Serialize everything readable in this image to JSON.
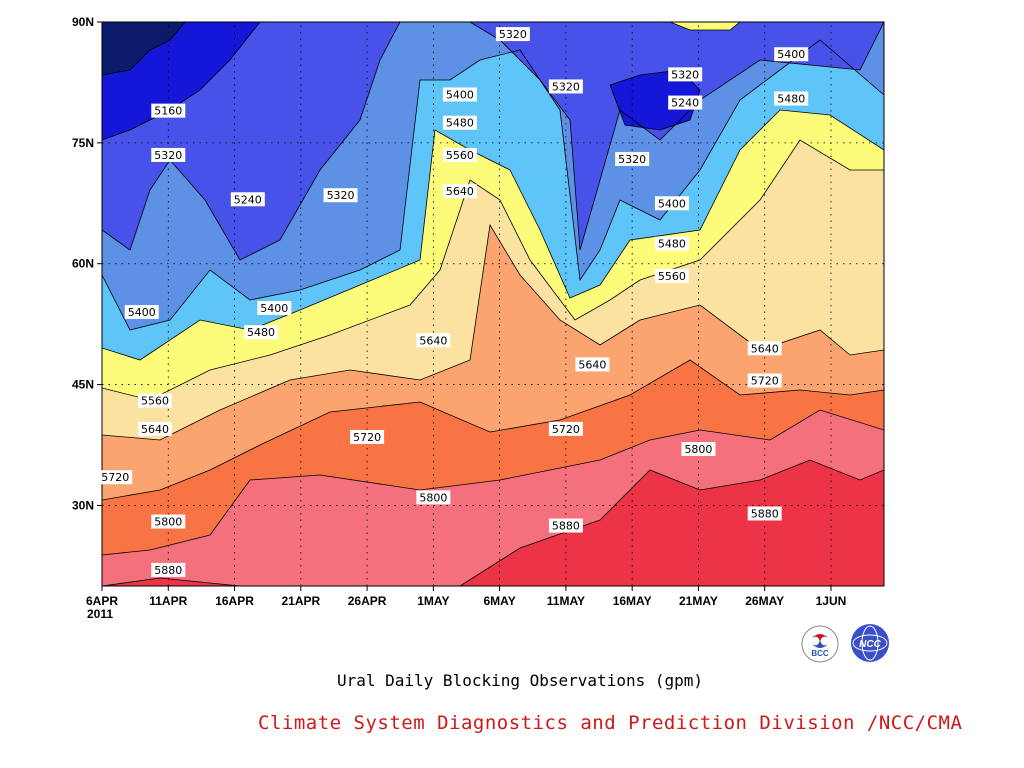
{
  "chart_data": {
    "type": "heatmap",
    "title": "Ural Daily Blocking Observations (gpm)",
    "xlabel": "",
    "ylabel": "",
    "x_tick_labels": [
      "6APR",
      "11APR",
      "16APR",
      "21APR",
      "26APR",
      "1MAY",
      "6MAY",
      "11MAY",
      "16MAY",
      "21MAY",
      "26MAY",
      "1JUN"
    ],
    "x_year_label": "2011",
    "y_tick_labels": [
      "30N",
      "45N",
      "60N",
      "75N",
      "90N"
    ],
    "y_ticks": [
      30,
      45,
      60,
      75,
      90
    ],
    "x_range": [
      "2011-04-06",
      "2011-06-04"
    ],
    "y_range": [
      20,
      90
    ],
    "contour_levels": [
      5160,
      5240,
      5320,
      5400,
      5480,
      5560,
      5640,
      5720,
      5800,
      5880
    ],
    "fill_colors": [
      "#0c1b6b",
      "#1416d8",
      "#4752e8",
      "#5c91e6",
      "#5fc4f8",
      "#fcfc7a",
      "#fce2a0",
      "#fca470",
      "#f97444",
      "#f3707c",
      "#ec3446"
    ],
    "contour_labels": [
      {
        "date": "2011-04-11",
        "lat": 79,
        "value": "5160"
      },
      {
        "date": "2011-04-11",
        "lat": 73.5,
        "value": "5320"
      },
      {
        "date": "2011-04-17",
        "lat": 68,
        "value": "5240"
      },
      {
        "date": "2011-04-24",
        "lat": 68.5,
        "value": "5320"
      },
      {
        "date": "2011-05-07",
        "lat": 88.5,
        "value": "5320"
      },
      {
        "date": "2011-05-03",
        "lat": 81,
        "value": "5400"
      },
      {
        "date": "2011-05-11",
        "lat": 82,
        "value": "5320"
      },
      {
        "date": "2011-05-03",
        "lat": 77.5,
        "value": "5480"
      },
      {
        "date": "2011-05-03",
        "lat": 73.5,
        "value": "5560"
      },
      {
        "date": "2011-05-03",
        "lat": 69,
        "value": "5640"
      },
      {
        "date": "2011-05-20",
        "lat": 83.5,
        "value": "5320"
      },
      {
        "date": "2011-05-20",
        "lat": 80,
        "value": "5240"
      },
      {
        "date": "2011-05-28",
        "lat": 86,
        "value": "5400"
      },
      {
        "date": "2011-05-28",
        "lat": 80.5,
        "value": "5480"
      },
      {
        "date": "2011-05-16",
        "lat": 73,
        "value": "5320"
      },
      {
        "date": "2011-05-19",
        "lat": 67.5,
        "value": "5400"
      },
      {
        "date": "2011-05-19",
        "lat": 62.5,
        "value": "5480"
      },
      {
        "date": "2011-05-19",
        "lat": 58.5,
        "value": "5560"
      },
      {
        "date": "2011-04-09",
        "lat": 54,
        "value": "5400"
      },
      {
        "date": "2011-04-19",
        "lat": 54.5,
        "value": "5400"
      },
      {
        "date": "2011-04-18",
        "lat": 51.5,
        "value": "5480"
      },
      {
        "date": "2011-04-10",
        "lat": 43,
        "value": "5560"
      },
      {
        "date": "2011-04-10",
        "lat": 39.5,
        "value": "5640"
      },
      {
        "date": "2011-05-01",
        "lat": 50.5,
        "value": "5640"
      },
      {
        "date": "2011-05-13",
        "lat": 47.5,
        "value": "5640"
      },
      {
        "date": "2011-05-26",
        "lat": 49.5,
        "value": "5640"
      },
      {
        "date": "2011-05-26",
        "lat": 45.5,
        "value": "5720"
      },
      {
        "date": "2011-04-07",
        "lat": 33.5,
        "value": "5720"
      },
      {
        "date": "2011-04-26",
        "lat": 38.5,
        "value": "5720"
      },
      {
        "date": "2011-05-11",
        "lat": 39.5,
        "value": "5720"
      },
      {
        "date": "2011-05-21",
        "lat": 37,
        "value": "5800"
      },
      {
        "date": "2011-04-11",
        "lat": 28,
        "value": "5800"
      },
      {
        "date": "2011-05-01",
        "lat": 31,
        "value": "5800"
      },
      {
        "date": "2011-05-26",
        "lat": 29,
        "value": "5880"
      },
      {
        "date": "2011-05-11",
        "lat": 27.5,
        "value": "5880"
      },
      {
        "date": "2011-04-11",
        "lat": 22,
        "value": "5880"
      }
    ]
  },
  "footer": {
    "title": "Ural Daily Blocking Observations (gpm)",
    "credit": "Climate System Diagnostics and Prediction Division /NCC/CMA",
    "logo_left_text": "BCC",
    "logo_right_text": "NCC"
  }
}
